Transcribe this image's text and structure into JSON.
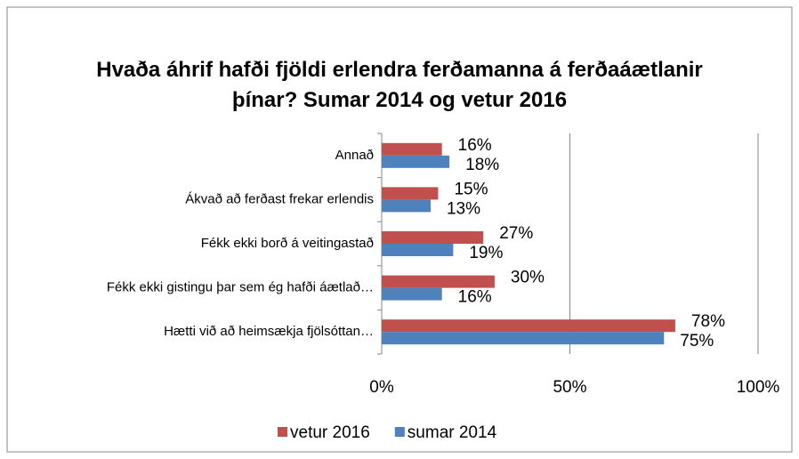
{
  "chart_data": {
    "type": "bar",
    "orientation": "horizontal",
    "title": "Hvaða áhrif hafði fjöldi erlendra ferðamanna á ferðaáætlanir þínar? Sumar 2014 og vetur 2016",
    "categories": [
      "Annað",
      "Ákvað að ferðast frekar erlendis",
      "Fékk ekki borð á veitingastað",
      "Fékk ekki gistingu þar sem ég hafði áætlað…",
      "Hætti við að heimsækja fjölsóttan…"
    ],
    "series": [
      {
        "name": "vetur 2016",
        "color": "#c0504d",
        "values": [
          16,
          15,
          27,
          30,
          78
        ],
        "value_labels": [
          "16%",
          "15%",
          "27%",
          "30%",
          "78%"
        ]
      },
      {
        "name": "sumar 2014",
        "color": "#4f81bd",
        "values": [
          18,
          13,
          19,
          16,
          75
        ],
        "value_labels": [
          "18%",
          "13%",
          "19%",
          "16%",
          "75%"
        ]
      }
    ],
    "xlim": [
      0,
      100
    ],
    "xticks": [
      {
        "value": 0,
        "label": "0%"
      },
      {
        "value": 50,
        "label": "50%"
      },
      {
        "value": 100,
        "label": "100%"
      }
    ],
    "grid": true,
    "legend": "bottom"
  }
}
